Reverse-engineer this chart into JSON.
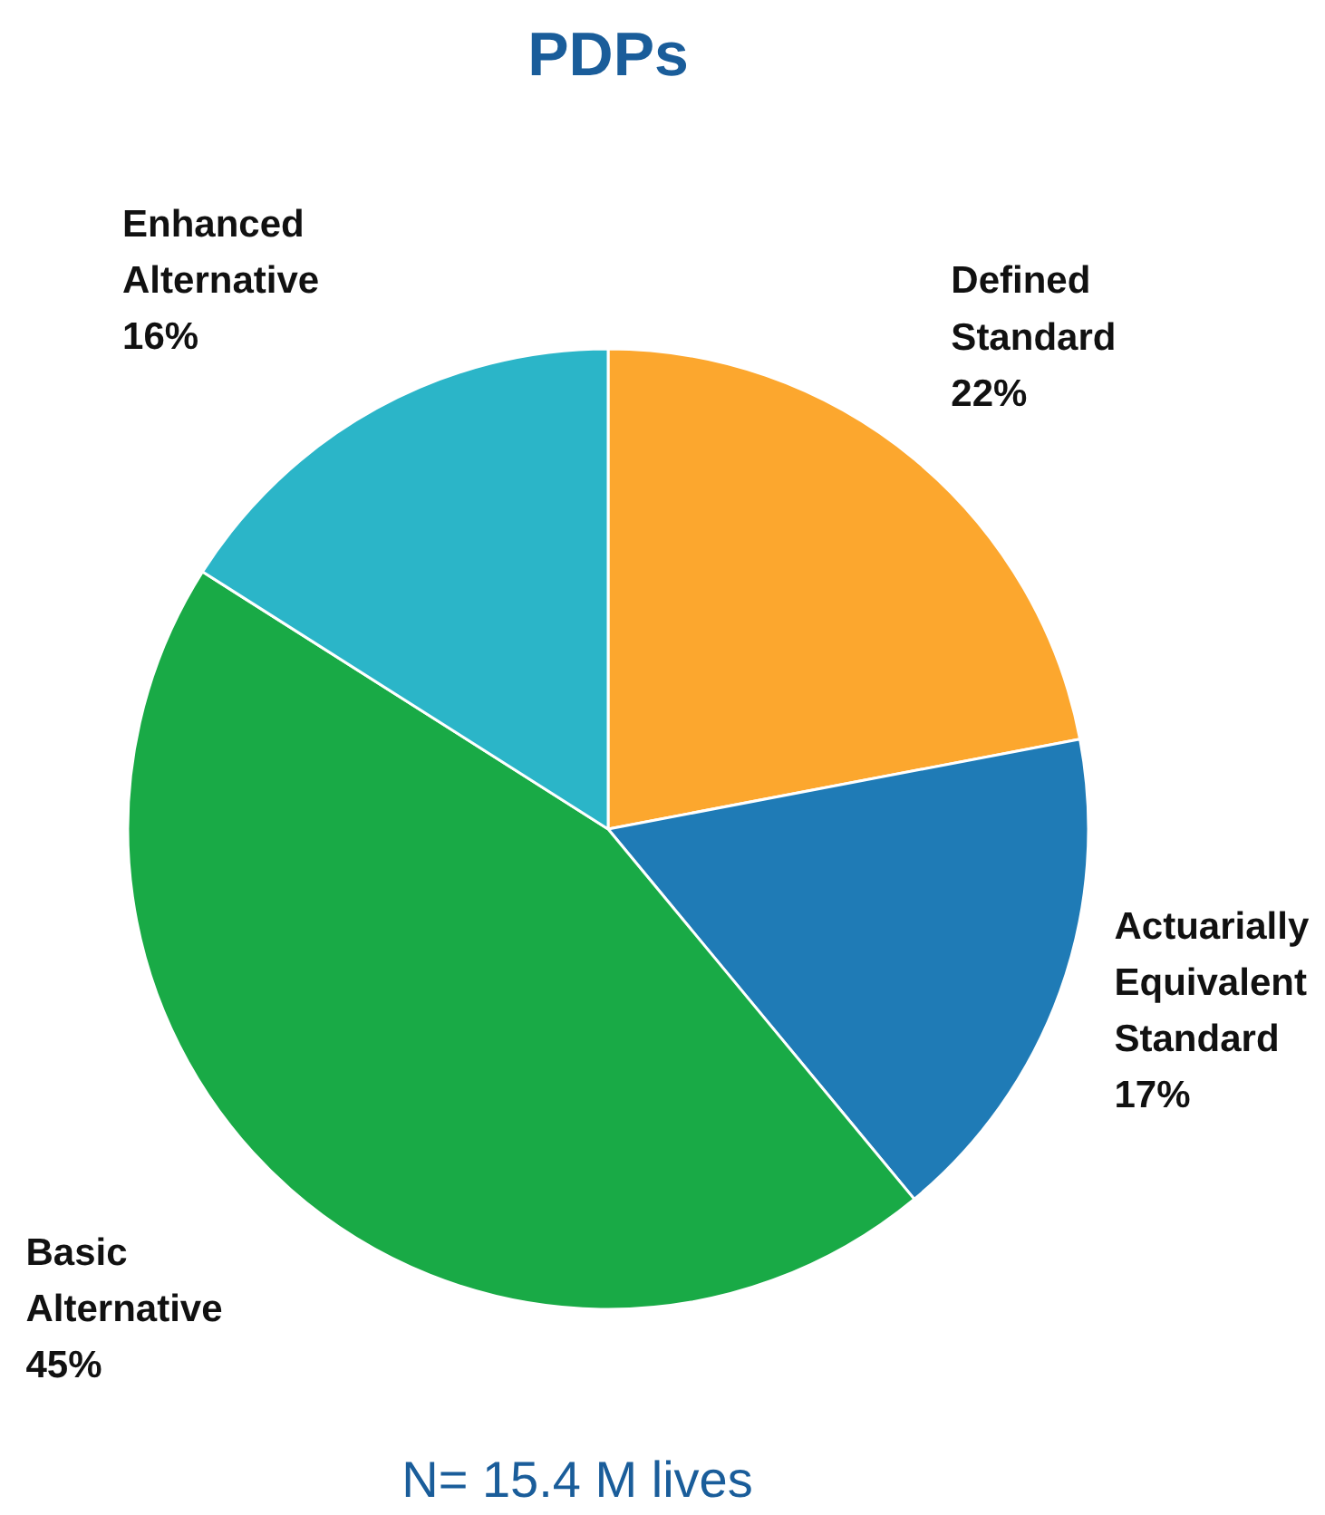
{
  "chart_data": {
    "type": "pie",
    "title": "PDPs",
    "categories": [
      "Defined Standard",
      "Actuarially Equivalent Standard",
      "Basic Alternative",
      "Enhanced Alternative"
    ],
    "values": [
      22,
      17,
      45,
      16
    ],
    "colors": [
      "#fca72e",
      "#1f7bb6",
      "#19aa46",
      "#2bb5c8"
    ],
    "value_labels": [
      "22%",
      "17%",
      "45%",
      "16%"
    ],
    "annotations": [
      "N= 15.4 M lives"
    ]
  }
}
